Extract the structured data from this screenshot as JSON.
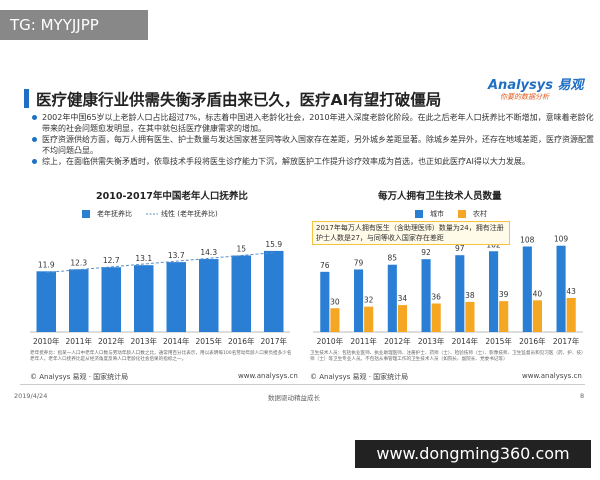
{
  "watermark": "TG: MYYJJPP",
  "header": {
    "title": "医疗健康行业供需失衡矛盾由来已久，医疗AI有望打破僵局",
    "logo": "Analysys 易观",
    "tagline": "你要的数据分析"
  },
  "bullets": [
    "2002年中国65岁以上老龄人口占比超过7%，标志着中国进入老龄化社会，2010年进入深度老龄化阶段。在此之后老年人口抚养比不断增加，意味着老龄化带来的社会问题愈发明显，在其中就包括医疗健康需求的增加。",
    "医疗资源供给方面，每万人拥有医生、护士数量与发达国家甚至同等收入国家存在差距，另外城乡差距显著。除城乡差异外，还存在地域差距，医疗资源配置不均问题凸显。",
    "综上，在面临供需失衡矛盾时，依靠技术手段将医生诊疗能力下沉，解放医护工作提升诊疗效率成为首选，也正如此医疗AI得以大力发展。"
  ],
  "chart_data": [
    {
      "type": "bar",
      "title": "2010-2017年中国老年人口抚养比",
      "categories": [
        "2010年",
        "2011年",
        "2012年",
        "2013年",
        "2014年",
        "2015年",
        "2016年",
        "2017年"
      ],
      "series": [
        {
          "name": "老年抚养比",
          "color": "#2a7fd4",
          "values": [
            11.9,
            12.3,
            12.7,
            13.1,
            13.7,
            14.3,
            15,
            15.9
          ],
          "data_labels": true
        },
        {
          "name": "线性 (老年抚养比)",
          "type": "line",
          "line_style": "dashed",
          "color": "#5a8fc8",
          "values": [
            11.66,
            12.22,
            12.77,
            13.33,
            13.89,
            14.45,
            15.01,
            15.57
          ]
        }
      ],
      "ylim": [
        0,
        20
      ],
      "note": "老年抚养比：指某一人口中老年人口数与劳动年龄人口数之比，通常用百分比表示，用以表明每100名劳动年龄人口要负担多少名老年人。老年人口抚养比是从经济角度反映人口老龄化社会后果的指标之一。",
      "source": "© Analysys 易观 · 国家统计局",
      "source_url": "www.analysys.cn"
    },
    {
      "type": "bar",
      "title": "每万人拥有卫生技术人员数量",
      "categories": [
        "2010年",
        "2011年",
        "2012年",
        "2013年",
        "2014年",
        "2015年",
        "2016年",
        "2017年"
      ],
      "series": [
        {
          "name": "城市",
          "color": "#2a7fd4",
          "values": [
            76,
            79,
            85,
            92,
            97,
            102,
            108,
            109
          ],
          "data_labels": true
        },
        {
          "name": "农村",
          "color": "#f5a623",
          "values": [
            30,
            32,
            34,
            36,
            38,
            39,
            40,
            43
          ],
          "data_labels": true
        }
      ],
      "ylim": [
        0,
        120
      ],
      "annotation": "2017年每万人拥有医生（含助理医师）数量为24，拥有注册护士人数是27，与同等收入国家存在差距",
      "note": "卫生技术人员：包括执业医师、执业助理医师、注册护士、药师（士）、检验技师（士）、影像技师、卫生监督员和见习医（药、护、技）师（士）等卫生专业人员。不包括从事管理工作的卫生技术人员（如院长、副院长、党委书记等）",
      "source": "© Analysys 易观 · 国家统计局",
      "source_url": "www.analysys.cn"
    }
  ],
  "footer": {
    "date": "2019/4/24",
    "slogan": "数据驱动精益成长",
    "page": "8"
  },
  "site_watermark": "www.dongming360.com"
}
